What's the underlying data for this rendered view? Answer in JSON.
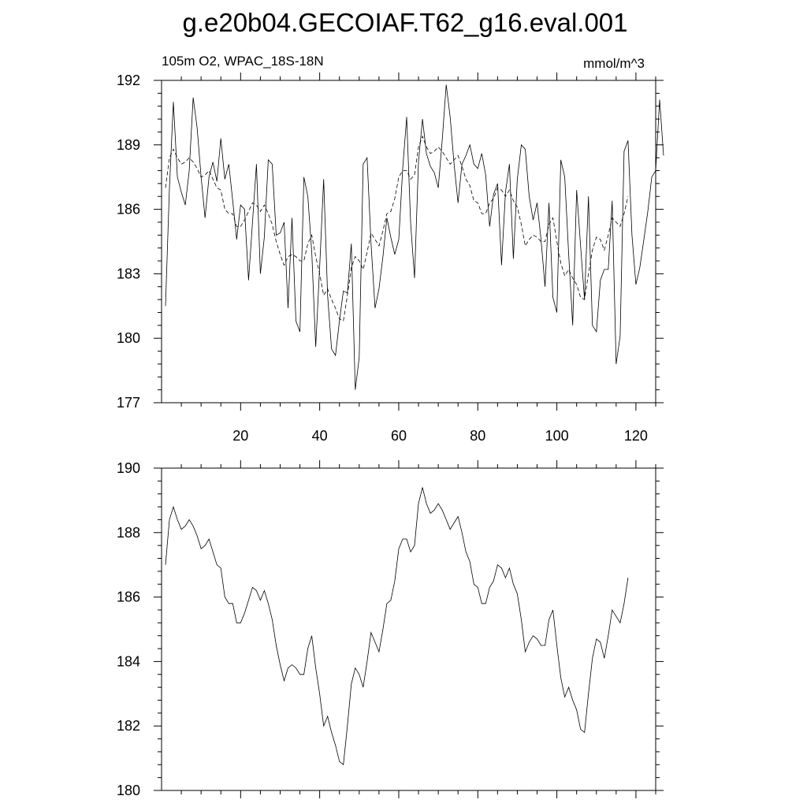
{
  "title": "g.e20b04.GECOIAF.T62_g16.eval.001",
  "chart_data": [
    {
      "type": "line",
      "subtitle_left": "105m O2, WPAC_18S-18N",
      "subtitle_right": "mmol/m^3",
      "xlim": [
        0,
        125
      ],
      "ylim": [
        177,
        192
      ],
      "x_ticks": [
        20,
        40,
        60,
        80,
        100,
        120
      ],
      "y_ticks": [
        177,
        180,
        183,
        186,
        189,
        192
      ],
      "series": [
        {
          "style": "solid",
          "values": [
            181.5,
            187,
            191,
            187.5,
            186.8,
            186.2,
            187.8,
            191.2,
            189.8,
            187.5,
            185.6,
            187.5,
            188.2,
            187.3,
            189.3,
            187.4,
            188.1,
            186.4,
            184.6,
            186.2,
            186,
            182.7,
            185.4,
            188.1,
            183,
            184.7,
            188.3,
            188.1,
            184.8,
            184.9,
            185.4,
            181.4,
            185.6,
            180.8,
            180.3,
            187.5,
            186.6,
            184,
            179.6,
            183.3,
            187.4,
            182,
            179.5,
            179.2,
            180.8,
            182.2,
            182.1,
            184.4,
            177.6,
            179.1,
            188.1,
            188.4,
            184.4,
            181.4,
            182.3,
            183.8,
            185.6,
            184.7,
            183.9,
            184.6,
            187.9,
            190.3,
            185.4,
            182.8,
            188.2,
            190.2,
            188.6,
            188,
            187.7,
            187,
            189.2,
            191.8,
            190.3,
            188.1,
            186.3,
            188.1,
            188.5,
            189,
            188.1,
            187.9,
            188.6,
            187.6,
            185.2,
            186.7,
            187.2,
            183.4,
            186.8,
            188.1,
            183.7,
            187.4,
            189,
            188.8,
            186.6,
            185.5,
            186.3,
            184.6,
            182.4,
            186.3,
            181.9,
            181.2,
            188.3,
            187.5,
            183.9,
            180.6,
            186.9,
            184.3,
            181.8,
            186.6,
            180.6,
            180.3,
            182.7,
            183.2,
            183.2,
            186.4,
            178.8,
            180.1,
            188.7,
            189.2,
            184.8,
            182.5,
            183.3,
            184.6,
            185.9,
            187.5,
            187.8,
            191.1,
            188.5
          ]
        },
        {
          "style": "dashed",
          "values": [
            187,
            188.4,
            188.8,
            188.4,
            188.1,
            188.2,
            188.4,
            188.2,
            187.9,
            187.5,
            187.6,
            187.8,
            187.4,
            187,
            186.9,
            186,
            185.8,
            185.8,
            185.2,
            185.2,
            185.5,
            185.9,
            186.3,
            186.2,
            185.9,
            186.2,
            185.8,
            185.3,
            184.5,
            183.9,
            183.4,
            183.8,
            183.9,
            183.8,
            183.6,
            183.6,
            184.4,
            184.8,
            183.8,
            183,
            182,
            182.3,
            181.8,
            181.4,
            180.9,
            180.8,
            182,
            183.3,
            183.8,
            183.6,
            183.2,
            184,
            184.9,
            184.6,
            184.3,
            185,
            185.8,
            185.9,
            186.5,
            187.5,
            187.8,
            187.8,
            187.4,
            187.6,
            188.9,
            189.4,
            188.9,
            188.6,
            188.7,
            188.9,
            188.7,
            188.4,
            188.1,
            188.3,
            188.5,
            188,
            187.4,
            187.1,
            186.4,
            186.3,
            185.8,
            185.8,
            186.3,
            186.5,
            187,
            186.9,
            186.6,
            186.9,
            186.4,
            186.1,
            185.3,
            184.3,
            184.6,
            184.8,
            184.7,
            184.5,
            184.5,
            185.3,
            185.6,
            184.5,
            183.5,
            182.9,
            183.2,
            182.8,
            182.5,
            181.9,
            181.8,
            183,
            184.1,
            184.7,
            184.6,
            184.1,
            184.8,
            185.6,
            185.4,
            185.2,
            185.8,
            186.6
          ]
        }
      ]
    },
    {
      "type": "line",
      "xlim": [
        0,
        125
      ],
      "ylim": [
        180,
        190
      ],
      "x_ticks": [
        20,
        40,
        60,
        80,
        100,
        120
      ],
      "y_ticks": [
        180,
        182,
        184,
        186,
        188,
        190
      ],
      "series": [
        {
          "style": "solid",
          "values": [
            187,
            188.4,
            188.8,
            188.4,
            188.1,
            188.2,
            188.4,
            188.2,
            187.9,
            187.5,
            187.6,
            187.8,
            187.4,
            187,
            186.9,
            186,
            185.8,
            185.8,
            185.2,
            185.2,
            185.5,
            185.9,
            186.3,
            186.2,
            185.9,
            186.2,
            185.8,
            185.3,
            184.5,
            183.9,
            183.4,
            183.8,
            183.9,
            183.8,
            183.6,
            183.6,
            184.4,
            184.8,
            183.8,
            183,
            182,
            182.3,
            181.8,
            181.4,
            180.9,
            180.8,
            182,
            183.3,
            183.8,
            183.6,
            183.2,
            184,
            184.9,
            184.6,
            184.3,
            185,
            185.8,
            185.9,
            186.5,
            187.5,
            187.8,
            187.8,
            187.4,
            187.6,
            188.9,
            189.4,
            188.9,
            188.6,
            188.7,
            188.9,
            188.7,
            188.4,
            188.1,
            188.3,
            188.5,
            188,
            187.4,
            187.1,
            186.4,
            186.3,
            185.8,
            185.8,
            186.3,
            186.5,
            187,
            186.9,
            186.6,
            186.9,
            186.4,
            186.1,
            185.3,
            184.3,
            184.6,
            184.8,
            184.7,
            184.5,
            184.5,
            185.3,
            185.6,
            184.5,
            183.5,
            182.9,
            183.2,
            182.8,
            182.5,
            181.9,
            181.8,
            183,
            184.1,
            184.7,
            184.6,
            184.1,
            184.8,
            185.6,
            185.4,
            185.2,
            185.8,
            186.6
          ]
        }
      ]
    }
  ]
}
